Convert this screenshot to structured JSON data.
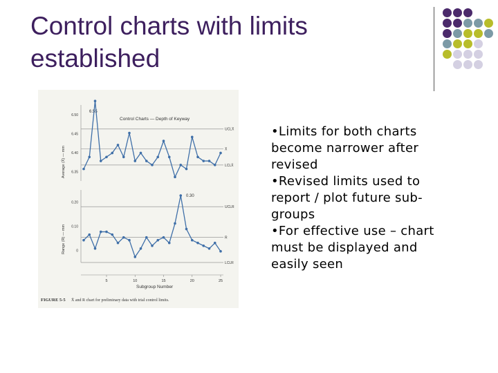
{
  "slide": {
    "title_line1": "Control charts with limits",
    "title_line2": "established",
    "bullets": [
      "•Limits for both charts\nbecome narrower after\nrevised",
      "•Revised limits used to\nreport / plot future sub-\ngroups",
      "•For effective use – chart\nmust be displayed and\neasily seen"
    ]
  },
  "decor": {
    "dot_colors": {
      "purple": "#4b2a6b",
      "teal": "#7c9aa6",
      "olive": "#b8bd2a",
      "lavender": "#d4d0e2"
    },
    "grid": [
      [
        "purple",
        "purple",
        "purple",
        null,
        null
      ],
      [
        "purple",
        "purple",
        "teal",
        "teal",
        "olive"
      ],
      [
        "purple",
        "teal",
        "olive",
        "olive",
        "teal"
      ],
      [
        "teal",
        "olive",
        "olive",
        "lavender",
        null
      ],
      [
        "olive",
        "lavender",
        "lavender",
        "lavender",
        null
      ],
      [
        null,
        "lavender",
        "lavender",
        "lavender",
        null
      ]
    ]
  },
  "chart_data": [
    {
      "type": "line",
      "title": "Control Charts — Depth of Keyway",
      "ylabel": "Average (X̄) — mm",
      "y_ticks": [
        "6.50",
        "6.45",
        "6.40",
        "6.35"
      ],
      "ylim": [
        6.33,
        6.52
      ],
      "limit_labels": [
        "UCLX̄",
        "X̄",
        "LCLX̄"
      ],
      "limits": {
        "ucl": 6.46,
        "center": 6.41,
        "lcl": 6.37
      },
      "annotations": [
        "6.55"
      ],
      "x": [
        1,
        2,
        3,
        4,
        5,
        6,
        7,
        8,
        9,
        10,
        11,
        12,
        13,
        14,
        15,
        16,
        17,
        18,
        19,
        20,
        21,
        22,
        23,
        24,
        25
      ],
      "values": [
        6.36,
        6.39,
        6.53,
        6.38,
        6.39,
        6.4,
        6.42,
        6.39,
        6.45,
        6.38,
        6.4,
        6.38,
        6.37,
        6.39,
        6.43,
        6.39,
        6.34,
        6.37,
        6.36,
        6.44,
        6.39,
        6.38,
        6.38,
        6.37,
        6.4
      ]
    },
    {
      "type": "line",
      "ylabel": "Range (R) — mm",
      "y_ticks": [
        "0.20",
        "0.10",
        "0"
      ],
      "ylim": [
        0,
        0.26
      ],
      "limit_labels": [
        "UCLR",
        "R",
        "LCLR"
      ],
      "limits": {
        "ucl": 0.2,
        "center": 0.09,
        "lcl": 0
      },
      "annotations": [
        "0.30"
      ],
      "x": [
        1,
        2,
        3,
        4,
        5,
        6,
        7,
        8,
        9,
        10,
        11,
        12,
        13,
        14,
        15,
        16,
        17,
        18,
        19,
        20,
        21,
        22,
        23,
        24,
        25
      ],
      "values": [
        0.08,
        0.1,
        0.05,
        0.11,
        0.11,
        0.1,
        0.07,
        0.09,
        0.08,
        0.02,
        0.05,
        0.09,
        0.06,
        0.08,
        0.09,
        0.07,
        0.14,
        0.24,
        0.12,
        0.08,
        0.07,
        0.06,
        0.05,
        0.07,
        0.04
      ],
      "xlabel": "Subgroup Number",
      "x_ticks": [
        "5",
        "10",
        "15",
        "20",
        "25"
      ]
    }
  ],
  "figure": {
    "caption_label": "FIGURE 5-5",
    "caption_text": "X̄ and R chart for preliminary data with trial control limits."
  }
}
